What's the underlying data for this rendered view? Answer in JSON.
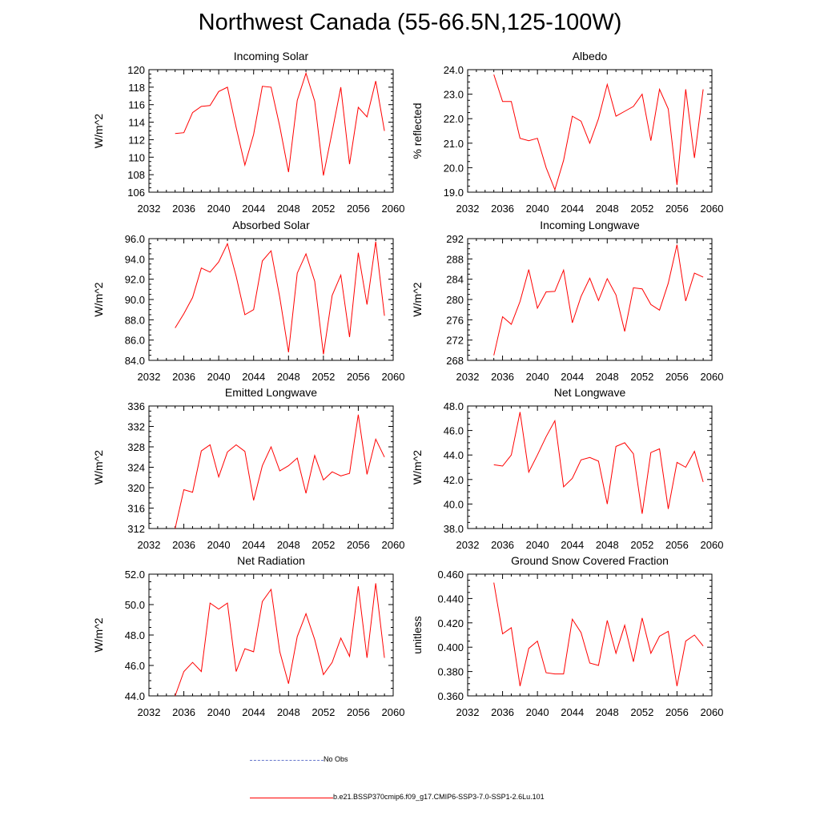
{
  "figure": {
    "title": "Northwest Canada (55-66.5N,125-100W)"
  },
  "legend": {
    "obs_label": "No Obs",
    "obs_color": "#6677cc",
    "model_label": "b.e21.BSSP370cmip6.f09_g17.CMIP6-SSP3-7.0-SSP1-2.6Lu.101",
    "model_color": "#ff0000"
  },
  "chart_data": [
    {
      "type": "line",
      "title": "Incoming Solar",
      "ylabel": "W/m^2",
      "xlim": [
        2032,
        2060
      ],
      "ylim": [
        106,
        120
      ],
      "xticks": [
        2032,
        2036,
        2040,
        2044,
        2048,
        2052,
        2056,
        2060
      ],
      "yticks": [
        106,
        108,
        110,
        112,
        114,
        116,
        118,
        120
      ],
      "ytick_labels": [
        "106",
        "108",
        "110",
        "112",
        "114",
        "116",
        "118",
        "120"
      ],
      "series": [
        {
          "x": [
            2035,
            2036,
            2037,
            2038,
            2039,
            2040,
            2041,
            2042,
            2043,
            2044,
            2045,
            2046,
            2047,
            2048,
            2049,
            2050,
            2051,
            2052,
            2053,
            2054,
            2055,
            2056,
            2057,
            2058,
            2059
          ],
          "values": [
            112.7,
            112.8,
            115.1,
            115.8,
            115.9,
            117.5,
            118.0,
            113.4,
            109.1,
            112.6,
            118.1,
            118.0,
            113.5,
            108.3,
            116.5,
            119.6,
            116.4,
            107.9,
            112.9,
            118.0,
            109.2,
            115.7,
            114.6,
            118.7,
            113.0
          ]
        }
      ]
    },
    {
      "type": "line",
      "title": "Albedo",
      "ylabel": "% reflected",
      "xlim": [
        2032,
        2060
      ],
      "ylim": [
        19.0,
        24.0
      ],
      "xticks": [
        2032,
        2036,
        2040,
        2044,
        2048,
        2052,
        2056,
        2060
      ],
      "yticks": [
        19,
        20,
        21,
        22,
        23,
        24
      ],
      "ytick_labels": [
        "19.0",
        "20.0",
        "21.0",
        "22.0",
        "23.0",
        "24.0"
      ],
      "series": [
        {
          "x": [
            2035,
            2036,
            2037,
            2038,
            2039,
            2040,
            2041,
            2042,
            2043,
            2044,
            2045,
            2046,
            2047,
            2048,
            2049,
            2050,
            2051,
            2052,
            2053,
            2054,
            2055,
            2056,
            2057,
            2058,
            2059
          ],
          "values": [
            23.8,
            22.7,
            22.7,
            21.2,
            21.1,
            21.2,
            20.0,
            19.1,
            20.3,
            22.1,
            21.9,
            21.0,
            22.0,
            23.4,
            22.1,
            22.3,
            22.5,
            23.0,
            21.1,
            23.2,
            22.4,
            19.3,
            23.2,
            20.4,
            23.2
          ]
        }
      ]
    },
    {
      "type": "line",
      "title": "Absorbed Solar",
      "ylabel": "W/m^2",
      "xlim": [
        2032,
        2060
      ],
      "ylim": [
        84.0,
        96.0
      ],
      "xticks": [
        2032,
        2036,
        2040,
        2044,
        2048,
        2052,
        2056,
        2060
      ],
      "yticks": [
        84,
        86,
        88,
        90,
        92,
        94,
        96
      ],
      "ytick_labels": [
        "84.0",
        "86.0",
        "88.0",
        "90.0",
        "92.0",
        "94.0",
        "96.0"
      ],
      "series": [
        {
          "x": [
            2035,
            2036,
            2037,
            2038,
            2039,
            2040,
            2041,
            2042,
            2043,
            2044,
            2045,
            2046,
            2047,
            2048,
            2049,
            2050,
            2051,
            2052,
            2053,
            2054,
            2055,
            2056,
            2057,
            2058,
            2059
          ],
          "values": [
            87.2,
            88.6,
            90.2,
            93.1,
            92.7,
            93.7,
            95.5,
            92.3,
            88.5,
            89.0,
            93.8,
            94.8,
            90.2,
            84.8,
            92.6,
            94.5,
            91.8,
            84.6,
            90.4,
            92.4,
            86.3,
            94.6,
            89.5,
            95.7,
            88.4
          ]
        }
      ]
    },
    {
      "type": "line",
      "title": "Incoming Longwave",
      "ylabel": "W/m^2",
      "xlim": [
        2032,
        2060
      ],
      "ylim": [
        268,
        292
      ],
      "xticks": [
        2032,
        2036,
        2040,
        2044,
        2048,
        2052,
        2056,
        2060
      ],
      "yticks": [
        268,
        272,
        276,
        280,
        284,
        288,
        292
      ],
      "ytick_labels": [
        "268",
        "272",
        "276",
        "280",
        "284",
        "288",
        "292"
      ],
      "series": [
        {
          "x": [
            2035,
            2036,
            2037,
            2038,
            2039,
            2040,
            2041,
            2042,
            2043,
            2044,
            2045,
            2046,
            2047,
            2048,
            2049,
            2050,
            2051,
            2052,
            2053,
            2054,
            2055,
            2056,
            2057,
            2058,
            2059
          ],
          "values": [
            269.0,
            276.6,
            275.1,
            279.6,
            285.9,
            278.3,
            281.5,
            281.6,
            285.8,
            275.4,
            280.6,
            284.2,
            279.8,
            284.1,
            280.9,
            273.7,
            282.3,
            282.1,
            279.0,
            277.9,
            283.2,
            290.8,
            279.7,
            285.2,
            284.4
          ]
        }
      ]
    },
    {
      "type": "line",
      "title": "Emitted Longwave",
      "ylabel": "W/m^2",
      "xlim": [
        2032,
        2060
      ],
      "ylim": [
        312,
        336
      ],
      "xticks": [
        2032,
        2036,
        2040,
        2044,
        2048,
        2052,
        2056,
        2060
      ],
      "yticks": [
        312,
        316,
        320,
        324,
        328,
        332,
        336
      ],
      "ytick_labels": [
        "312",
        "316",
        "320",
        "324",
        "328",
        "332",
        "336"
      ],
      "series": [
        {
          "x": [
            2035,
            2036,
            2037,
            2038,
            2039,
            2040,
            2041,
            2042,
            2043,
            2044,
            2045,
            2046,
            2047,
            2048,
            2049,
            2050,
            2051,
            2052,
            2053,
            2054,
            2055,
            2056,
            2057,
            2058,
            2059
          ],
          "values": [
            312.0,
            319.6,
            319.1,
            327.2,
            328.4,
            322.1,
            327.0,
            328.4,
            327.1,
            317.5,
            324.3,
            328.0,
            323.3,
            324.3,
            325.8,
            318.9,
            326.3,
            321.5,
            323.1,
            322.3,
            322.8,
            334.3,
            322.6,
            329.5,
            326.0
          ]
        }
      ]
    },
    {
      "type": "line",
      "title": "Net Longwave",
      "ylabel": "W/m^2",
      "xlim": [
        2032,
        2060
      ],
      "ylim": [
        38.0,
        48.0
      ],
      "xticks": [
        2032,
        2036,
        2040,
        2044,
        2048,
        2052,
        2056,
        2060
      ],
      "yticks": [
        38,
        40,
        42,
        44,
        46,
        48
      ],
      "ytick_labels": [
        "38.0",
        "40.0",
        "42.0",
        "44.0",
        "46.0",
        "48.0"
      ],
      "series": [
        {
          "x": [
            2035,
            2036,
            2037,
            2038,
            2039,
            2040,
            2041,
            2042,
            2043,
            2044,
            2045,
            2046,
            2047,
            2048,
            2049,
            2050,
            2051,
            2052,
            2053,
            2054,
            2055,
            2056,
            2057,
            2058,
            2059
          ],
          "values": [
            43.2,
            43.1,
            44.0,
            47.5,
            42.6,
            44.0,
            45.5,
            46.8,
            41.4,
            42.1,
            43.6,
            43.8,
            43.5,
            40.0,
            44.7,
            45.0,
            44.1,
            39.2,
            44.2,
            44.5,
            39.6,
            43.4,
            43.0,
            44.3,
            41.8
          ]
        }
      ]
    },
    {
      "type": "line",
      "title": "Net Radiation",
      "ylabel": "W/m^2",
      "xlim": [
        2032,
        2060
      ],
      "ylim": [
        44.0,
        52.0
      ],
      "xticks": [
        2032,
        2036,
        2040,
        2044,
        2048,
        2052,
        2056,
        2060
      ],
      "yticks": [
        44,
        46,
        48,
        50,
        52
      ],
      "ytick_labels": [
        "44.0",
        "46.0",
        "48.0",
        "50.0",
        "52.0"
      ],
      "series": [
        {
          "x": [
            2035,
            2036,
            2037,
            2038,
            2039,
            2040,
            2041,
            2042,
            2043,
            2044,
            2045,
            2046,
            2047,
            2048,
            2049,
            2050,
            2051,
            2052,
            2053,
            2054,
            2055,
            2056,
            2057,
            2058,
            2059
          ],
          "values": [
            44.0,
            45.6,
            46.2,
            45.6,
            50.1,
            49.7,
            50.1,
            45.6,
            47.1,
            46.9,
            50.2,
            51.0,
            46.9,
            44.8,
            47.9,
            49.4,
            47.7,
            45.4,
            46.2,
            47.8,
            46.6,
            51.2,
            46.5,
            51.4,
            46.5
          ]
        }
      ]
    },
    {
      "type": "line",
      "title": "Ground Snow Covered Fraction",
      "ylabel": "unitless",
      "xlim": [
        2032,
        2060
      ],
      "ylim": [
        0.36,
        0.46
      ],
      "xticks": [
        2032,
        2036,
        2040,
        2044,
        2048,
        2052,
        2056,
        2060
      ],
      "yticks": [
        0.36,
        0.38,
        0.4,
        0.42,
        0.44,
        0.46
      ],
      "ytick_labels": [
        "0.360",
        "0.380",
        "0.400",
        "0.420",
        "0.440",
        "0.460"
      ],
      "series": [
        {
          "x": [
            2035,
            2036,
            2037,
            2038,
            2039,
            2040,
            2041,
            2042,
            2043,
            2044,
            2045,
            2046,
            2047,
            2048,
            2049,
            2050,
            2051,
            2052,
            2053,
            2054,
            2055,
            2056,
            2057,
            2058,
            2059
          ],
          "values": [
            0.453,
            0.411,
            0.416,
            0.368,
            0.399,
            0.405,
            0.379,
            0.378,
            0.378,
            0.423,
            0.412,
            0.387,
            0.385,
            0.422,
            0.395,
            0.418,
            0.388,
            0.424,
            0.395,
            0.409,
            0.413,
            0.368,
            0.405,
            0.41,
            0.401
          ]
        }
      ]
    }
  ]
}
